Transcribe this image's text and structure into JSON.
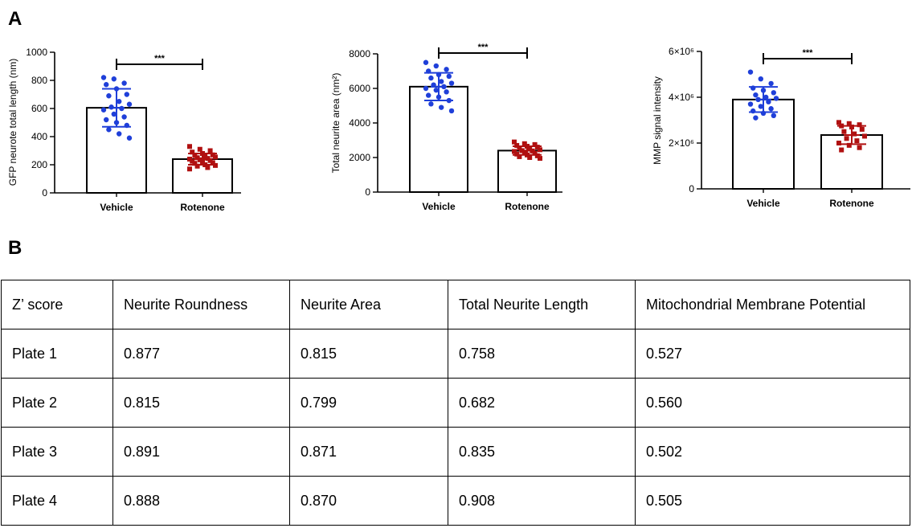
{
  "panels": {
    "a": "A",
    "b": "B"
  },
  "chart_data": [
    {
      "type": "bar",
      "ylabel": "GFP neurote total length (nm)",
      "categories": [
        "Vehicle",
        "Rotenone"
      ],
      "ylim": [
        0,
        1000
      ],
      "yticks": [
        0,
        200,
        400,
        600,
        800,
        1000
      ],
      "ytick_labels": [
        "0",
        "200",
        "400",
        "600",
        "800",
        "1000"
      ],
      "values": [
        605,
        240
      ],
      "sd": [
        135,
        40
      ],
      "significance": "***",
      "points": [
        [
          820,
          810,
          780,
          770,
          740,
          700,
          690,
          650,
          630,
          610,
          600,
          590,
          560,
          540,
          520,
          500,
          480,
          450,
          420,
          390
        ],
        [
          330,
          310,
          300,
          290,
          280,
          270,
          265,
          260,
          255,
          250,
          245,
          240,
          235,
          230,
          225,
          220,
          215,
          210,
          200,
          195,
          190,
          180,
          170
        ]
      ],
      "colors": [
        "#1f3fd9",
        "#b01010"
      ],
      "markers": [
        "circle",
        "square"
      ]
    },
    {
      "type": "bar",
      "ylabel": "Total neurite area (nm²)",
      "categories": [
        "Vehicle",
        "Rotenone"
      ],
      "ylim": [
        0,
        8000
      ],
      "yticks": [
        0,
        2000,
        4000,
        6000,
        8000
      ],
      "ytick_labels": [
        "0",
        "2000",
        "4000",
        "6000",
        "8000"
      ],
      "values": [
        6100,
        2400
      ],
      "sd": [
        800,
        250
      ],
      "significance": "***",
      "points": [
        [
          7500,
          7300,
          7100,
          7000,
          6800,
          6700,
          6600,
          6400,
          6300,
          6200,
          6100,
          6000,
          5900,
          5800,
          5600,
          5500,
          5300,
          5100,
          4900,
          4700
        ],
        [
          2900,
          2800,
          2750,
          2700,
          2650,
          2600,
          2550,
          2500,
          2450,
          2400,
          2380,
          2350,
          2300,
          2250,
          2200,
          2150,
          2100,
          2050,
          2000,
          1950
        ]
      ],
      "colors": [
        "#1f3fd9",
        "#b01010"
      ],
      "markers": [
        "circle",
        "square"
      ]
    },
    {
      "type": "bar",
      "ylabel": "MMP signal intensity",
      "categories": [
        "Vehicle",
        "Rotenone"
      ],
      "ylim": [
        0,
        6000000
      ],
      "yticks": [
        0,
        2000000,
        4000000,
        6000000
      ],
      "ytick_labels": [
        "0",
        "2×10⁶",
        "4×10⁶",
        "6×10⁶"
      ],
      "values": [
        3900000,
        2350000
      ],
      "sd": [
        550000,
        400000
      ],
      "significance": "***",
      "points": [
        [
          5100000,
          4800000,
          4600000,
          4400000,
          4300000,
          4200000,
          4100000,
          4000000,
          3950000,
          3900000,
          3800000,
          3700000,
          3600000,
          3500000,
          3400000,
          3300000,
          3200000,
          3100000
        ],
        [
          2900000,
          2850000,
          2800000,
          2750000,
          2700000,
          2600000,
          2500000,
          2400000,
          2300000,
          2200000,
          2100000,
          2000000,
          1900000,
          1800000,
          1700000
        ]
      ],
      "colors": [
        "#1f3fd9",
        "#b01010"
      ],
      "markers": [
        "circle",
        "square"
      ]
    }
  ],
  "table": {
    "header": [
      "Z’ score",
      "Neurite Roundness",
      "Neurite Area",
      "Total Neurite Length",
      "Mitochondrial Membrane Potential"
    ],
    "rows": [
      [
        "Plate 1",
        "0.877",
        "0.815",
        "0.758",
        "0.527"
      ],
      [
        "Plate 2",
        "0.815",
        "0.799",
        "0.682",
        "0.560"
      ],
      [
        "Plate 3",
        "0.891",
        "0.871",
        "0.835",
        "0.502"
      ],
      [
        "Plate 4",
        "0.888",
        "0.870",
        "0.908",
        "0.505"
      ]
    ]
  }
}
